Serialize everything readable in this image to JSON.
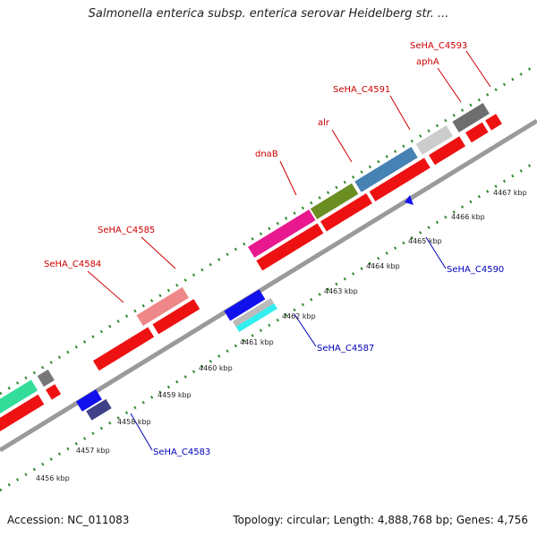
{
  "title": "Salmonella enterica subsp. enterica serovar Heidelberg str. ...",
  "footer": {
    "accession": "Accession: NC_011083",
    "summary": "Topology: circular; Length: 4,888,768 bp; Genes: 4,756"
  },
  "colors": {
    "backbone": "#9a9a9a",
    "tick": "#2f8a2f",
    "forward_label": "#cc0000",
    "reverse_label": "#0000bb"
  },
  "kbp_ticks": [
    "4456 kbp",
    "4457 kbp",
    "4458 kbp",
    "4459 kbp",
    "4460 kbp",
    "4461 kbp",
    "4462 kbp",
    "4463 kbp",
    "4464 kbp",
    "4465 kbp",
    "4466 kbp",
    "4467 kbp"
  ],
  "gene_labels": [
    {
      "text": "SeHA_C4584",
      "strand": "forward"
    },
    {
      "text": "SeHA_C4585",
      "strand": "forward"
    },
    {
      "text": "dnaB",
      "strand": "forward"
    },
    {
      "text": "alr",
      "strand": "forward"
    },
    {
      "text": "SeHA_C4591",
      "strand": "forward"
    },
    {
      "text": "aphA",
      "strand": "forward"
    },
    {
      "text": "SeHA_C4593",
      "strand": "forward"
    },
    {
      "text": "SeHA_C4583",
      "strand": "reverse"
    },
    {
      "text": "SeHA_C4587",
      "strand": "reverse"
    },
    {
      "text": "SeHA_C4590",
      "strand": "reverse"
    }
  ]
}
